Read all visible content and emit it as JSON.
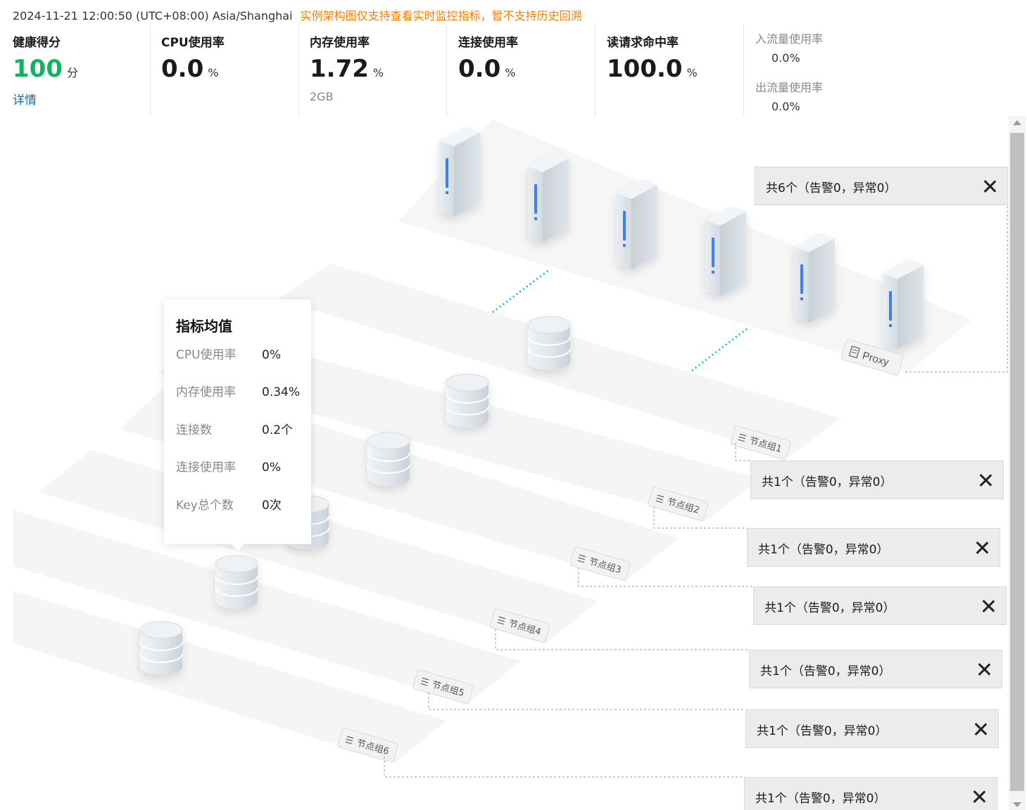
{
  "header": {
    "timestamp": "2024-11-21 12:00:50 (UTC+08:00) Asia/Shanghai",
    "notice": "实例架构图仅支持查看实时监控指标，暂不支持历史回溯"
  },
  "metrics": {
    "health": {
      "label": "健康得分",
      "value": "100",
      "unit": "分",
      "link": "详情"
    },
    "cpu": {
      "label": "CPU使用率",
      "value": "0.0",
      "unit": "%"
    },
    "memory": {
      "label": "内存使用率",
      "value": "1.72",
      "unit": "%",
      "sub": "2GB"
    },
    "connection": {
      "label": "连接使用率",
      "value": "0.0",
      "unit": "%"
    },
    "read_hit": {
      "label": "读请求命中率",
      "value": "100.0",
      "unit": "%"
    },
    "inflow": {
      "label": "入流量使用率",
      "value": "0.0%"
    },
    "outflow": {
      "label": "出流量使用率",
      "value": "0.0%"
    }
  },
  "diagram": {
    "proxy_label": "Proxy",
    "groups": [
      "节点组1",
      "节点组2",
      "节点组3",
      "节点组4",
      "节点组5",
      "节点组6"
    ],
    "proxy_summary": "共6个（告警0，异常0）",
    "group_summaries": [
      "共1个（告警0，异常0）",
      "共1个（告警0，异常0）",
      "共1个（告警0，异常0）",
      "共1个（告警0，异常0）",
      "共1个（告警0，异常0）",
      "共1个（告警0，异常0）"
    ]
  },
  "tooltip": {
    "title": "指标均值",
    "rows": [
      {
        "label": "CPU使用率",
        "value": "0%"
      },
      {
        "label": "内存使用率",
        "value": "0.34%"
      },
      {
        "label": "连接数",
        "value": "0.2个"
      },
      {
        "label": "连接使用率",
        "value": "0%"
      },
      {
        "label": "Key总个数",
        "value": "0次"
      }
    ]
  },
  "colors": {
    "accent_green": "#12b35f",
    "link_blue": "#0070cc",
    "notice_orange": "#ff7d00",
    "server_blue": "#3b7ff0",
    "link_dots": "#29b6f0"
  }
}
